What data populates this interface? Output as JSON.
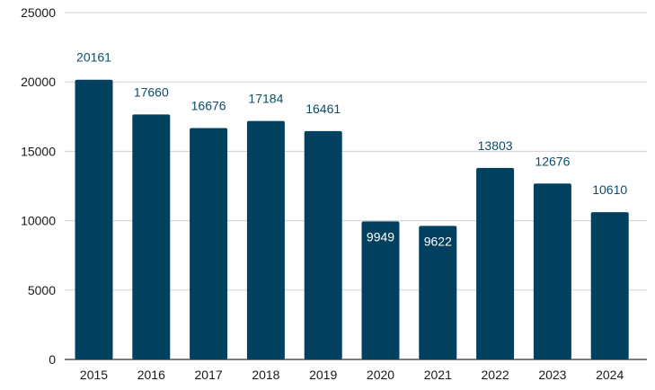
{
  "chart_data": {
    "type": "bar",
    "categories": [
      "2015",
      "2016",
      "2017",
      "2018",
      "2019",
      "2020",
      "2021",
      "2022",
      "2023",
      "2024"
    ],
    "values": [
      20161,
      17660,
      16676,
      17184,
      16461,
      9949,
      9622,
      13803,
      12676,
      10610
    ],
    "data_labels": [
      "20161",
      "17660",
      "16676",
      "17184",
      "16461",
      "9949",
      "9622",
      "13803",
      "12676",
      "10610"
    ],
    "title": "",
    "xlabel": "",
    "ylabel": "",
    "ylim": [
      0,
      25000
    ],
    "yticks": [
      0,
      5000,
      10000,
      15000,
      20000,
      25000
    ],
    "ytick_labels": [
      "0",
      "5000",
      "10000",
      "15000",
      "20000",
      "25000"
    ],
    "grid": true,
    "legend": "none",
    "colors": {
      "bar": "#01405f",
      "label_outside": "#0c4d6b",
      "label_inside": "#ffffff",
      "grid": "#d0d0d0",
      "axis_text": "#1a1a1a"
    }
  }
}
